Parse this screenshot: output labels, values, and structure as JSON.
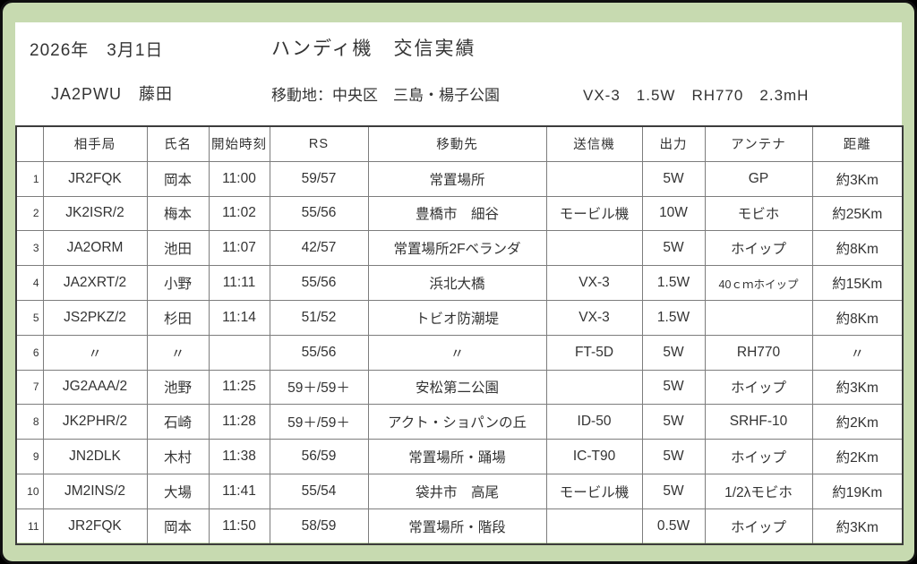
{
  "header": {
    "date": "2026年　3月1日",
    "title": "ハンディ機　交信実績",
    "operator": "JA2PWU　藤田",
    "location": "移動地：中央区　三島・楊子公園",
    "rig": "VX-3　1.5W　RH770　2.3mH"
  },
  "table": {
    "columns": [
      "",
      "相手局",
      "氏名",
      "開始時刻",
      "RS",
      "移動先",
      "送信機",
      "出力",
      "アンテナ",
      "距離"
    ],
    "rows": [
      [
        "1",
        "JR2FQK",
        "岡本",
        "11:00",
        "59/57",
        "常置場所",
        "",
        "5W",
        "GP",
        "約3Km"
      ],
      [
        "2",
        "JK2ISR/2",
        "梅本",
        "11:02",
        "55/56",
        "豊橋市　細谷",
        "モービル機",
        "10W",
        "モビホ",
        "約25Km"
      ],
      [
        "3",
        "JA2ORM",
        "池田",
        "11:07",
        "42/57",
        "常置場所2Fベランダ",
        "",
        "5W",
        "ホイップ",
        "約8Km"
      ],
      [
        "4",
        "JA2XRT/2",
        "小野",
        "11:11",
        "55/56",
        "浜北大橋",
        "VX-3",
        "1.5W",
        "40ｃｍホイップ",
        "約15Km"
      ],
      [
        "5",
        "JS2PKZ/2",
        "杉田",
        "11:14",
        "51/52",
        "トビオ防潮堤",
        "VX-3",
        "1.5W",
        "",
        "約8Km"
      ],
      [
        "6",
        "〃",
        "〃",
        "",
        "55/56",
        "〃",
        "FT-5D",
        "5W",
        "RH770",
        "〃"
      ],
      [
        "7",
        "JG2AAA/2",
        "池野",
        "11:25",
        "59＋/59＋",
        "安松第二公園",
        "",
        "5W",
        "ホイップ",
        "約3Km"
      ],
      [
        "8",
        "JK2PHR/2",
        "石崎",
        "11:28",
        "59＋/59＋",
        "アクト・ショパンの丘",
        "ID-50",
        "5W",
        "SRHF-10",
        "約2Km"
      ],
      [
        "9",
        "JN2DLK",
        "木村",
        "11:38",
        "56/59",
        "常置場所・踊場",
        "IC-T90",
        "5W",
        "ホイップ",
        "約2Km"
      ],
      [
        "10",
        "JM2INS/2",
        "大場",
        "11:41",
        "55/54",
        "袋井市　高尾",
        "モービル機",
        "5W",
        "1/2λモビホ",
        "約19Km"
      ],
      [
        "11",
        "JR2FQK",
        "岡本",
        "11:50",
        "58/59",
        "常置場所・階段",
        "",
        "0.5W",
        "ホイップ",
        "約3Km"
      ]
    ]
  },
  "colors": {
    "frame_green": "#c7dab0",
    "border_black": "#101010",
    "text": "#333333",
    "grid_line": "#7d7d7d"
  }
}
